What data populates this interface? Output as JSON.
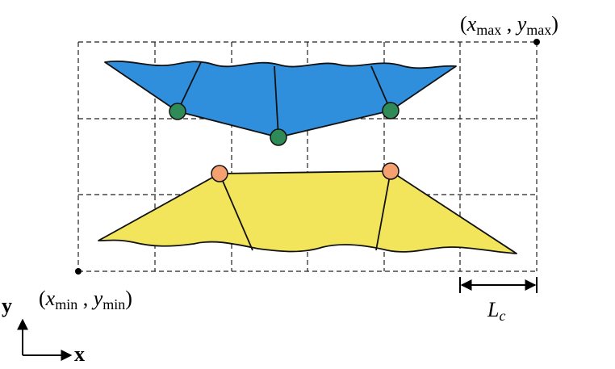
{
  "labels": {
    "max_corner": {
      "parts": [
        {
          "text": "(",
          "style": "roman"
        },
        {
          "text": "x",
          "style": "italic"
        },
        {
          "text": "max",
          "style": "sub"
        },
        {
          "text": " , ",
          "style": "roman"
        },
        {
          "text": "y",
          "style": "italic"
        },
        {
          "text": "max",
          "style": "sub"
        },
        {
          "text": ")",
          "style": "roman"
        }
      ]
    },
    "min_corner": {
      "parts": [
        {
          "text": "(",
          "style": "roman"
        },
        {
          "text": "x",
          "style": "italic"
        },
        {
          "text": "min",
          "style": "sub"
        },
        {
          "text": " , ",
          "style": "roman"
        },
        {
          "text": "y",
          "style": "italic"
        },
        {
          "text": "min",
          "style": "sub"
        },
        {
          "text": ")",
          "style": "roman"
        }
      ]
    },
    "cell_size": {
      "parts": [
        {
          "text": "L",
          "style": "italic"
        },
        {
          "text": "c",
          "style": "italic-sub"
        }
      ]
    },
    "axis_y": {
      "parts": [
        {
          "text": "y",
          "style": "bold"
        }
      ]
    },
    "axis_x": {
      "parts": [
        {
          "text": "x",
          "style": "bold"
        }
      ]
    }
  }
}
